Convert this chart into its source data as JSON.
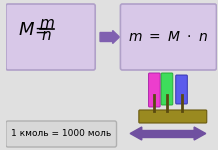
{
  "bg_color": "#e0e0e0",
  "box1_color": "#d8c8e8",
  "box2_color": "#d8c8e8",
  "box3_color": "#d8d8d8",
  "bottom_text": "1 кмоль = 1000 моль",
  "arrow_color": "#8060b0",
  "arrow2_color": "#7050a0",
  "fig_width": 2.18,
  "fig_height": 1.5,
  "dpi": 100
}
